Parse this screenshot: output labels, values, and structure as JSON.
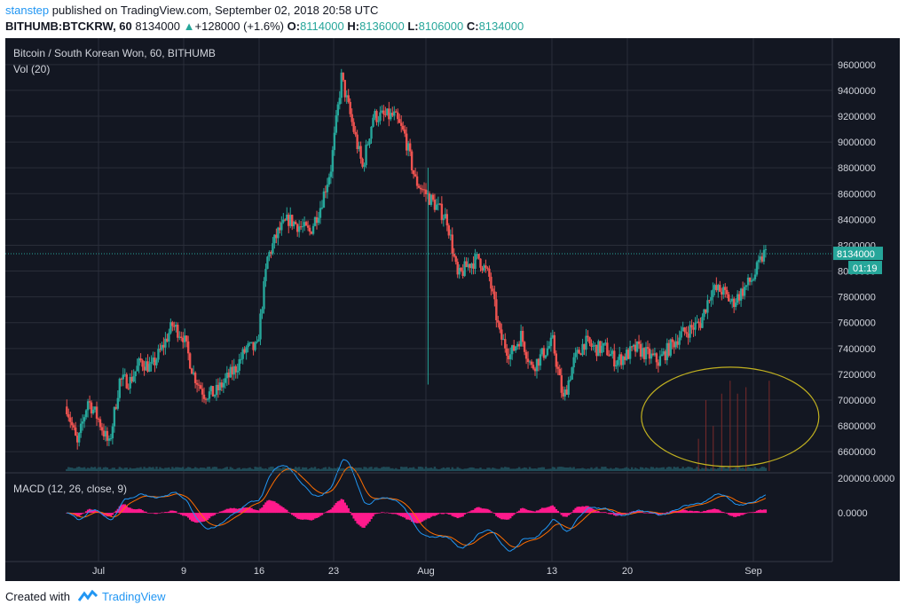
{
  "header": {
    "user": "stanstep",
    "published": "published on TradingView.com, September 02, 2018 20:58 UTC",
    "symbol": "BITHUMB:BTCKRW, 60",
    "last": "8134000",
    "change": "+128000 (+1.6%)",
    "o_label": "O:",
    "o_value": "8114000",
    "h_label": "H:",
    "h_value": "8136000",
    "l_label": "L:",
    "l_value": "8106000",
    "c_label": "C:",
    "c_value": "8134000"
  },
  "footer": {
    "created_with": "Created with",
    "brand": "TradingView"
  },
  "colors": {
    "background": "#131722",
    "grid": "#2a2e39",
    "up": "#26a69a",
    "down": "#ef5350",
    "macd_line": "#2196f3",
    "signal_line": "#ff6d00",
    "histogram": "#ff1a8c",
    "annotation": "#c0b020",
    "price_label": "#26a69a"
  },
  "chart_data": [
    {
      "type": "candlestick",
      "title": "Bitcoin / South Korean Won, 60, BITHUMB",
      "volume_label": "Vol (20)",
      "x_ticks": [
        "Jul",
        "9",
        "16",
        "23",
        "Aug",
        "13",
        "20",
        "Sep"
      ],
      "y_ticks": [
        6600000,
        6800000,
        7000000,
        7200000,
        7400000,
        7600000,
        7800000,
        8000000,
        8200000,
        8400000,
        8600000,
        8800000,
        9000000,
        9200000,
        9400000,
        9600000
      ],
      "ylim": [
        6450000,
        9750000
      ],
      "last_price": "8134000",
      "countdown": "01:19",
      "close_path": [
        {
          "x": "Jun 28",
          "y": 6950000
        },
        {
          "x": "Jun 29",
          "y": 6650000
        },
        {
          "x": "Jun 30",
          "y": 7000000
        },
        {
          "x": "Jul 1",
          "y": 6850000
        },
        {
          "x": "Jul 2",
          "y": 6650000
        },
        {
          "x": "Jul 3",
          "y": 7150000
        },
        {
          "x": "Jul 4",
          "y": 7150000
        },
        {
          "x": "Jul 5",
          "y": 7300000
        },
        {
          "x": "Jul 6",
          "y": 7250000
        },
        {
          "x": "Jul 7",
          "y": 7400000
        },
        {
          "x": "Jul 8",
          "y": 7580000
        },
        {
          "x": "Jul 9",
          "y": 7500000
        },
        {
          "x": "Jul 10",
          "y": 7200000
        },
        {
          "x": "Jul 11",
          "y": 7050000
        },
        {
          "x": "Jul 12",
          "y": 7050000
        },
        {
          "x": "Jul 13",
          "y": 7150000
        },
        {
          "x": "Jul 14",
          "y": 7250000
        },
        {
          "x": "Jul 15",
          "y": 7400000
        },
        {
          "x": "Jul 16",
          "y": 7400000
        },
        {
          "x": "Jul 17",
          "y": 8100000
        },
        {
          "x": "Jul 18",
          "y": 8300000
        },
        {
          "x": "Jul 19",
          "y": 8400000
        },
        {
          "x": "Jul 20",
          "y": 8350000
        },
        {
          "x": "Jul 21",
          "y": 8300000
        },
        {
          "x": "Jul 22",
          "y": 8500000
        },
        {
          "x": "Jul 23",
          "y": 8800000
        },
        {
          "x": "Jul 24",
          "y": 9500000
        },
        {
          "x": "Jul 25",
          "y": 9150000
        },
        {
          "x": "Jul 26",
          "y": 8800000
        },
        {
          "x": "Jul 27",
          "y": 9200000
        },
        {
          "x": "Jul 28",
          "y": 9200000
        },
        {
          "x": "Jul 29",
          "y": 9200000
        },
        {
          "x": "Jul 30",
          "y": 9050000
        },
        {
          "x": "Jul 31",
          "y": 8700000
        },
        {
          "x": "Aug 1",
          "y": 8600000
        },
        {
          "x": "Aug 2",
          "y": 8500000
        },
        {
          "x": "Aug 3",
          "y": 8400000
        },
        {
          "x": "Aug 4",
          "y": 7950000
        },
        {
          "x": "Aug 5",
          "y": 8050000
        },
        {
          "x": "Aug 6",
          "y": 8100000
        },
        {
          "x": "Aug 7",
          "y": 7950000
        },
        {
          "x": "Aug 8",
          "y": 7500000
        },
        {
          "x": "Aug 9",
          "y": 7350000
        },
        {
          "x": "Aug 10",
          "y": 7500000
        },
        {
          "x": "Aug 11",
          "y": 7250000
        },
        {
          "x": "Aug 12",
          "y": 7350000
        },
        {
          "x": "Aug 13",
          "y": 7450000
        },
        {
          "x": "Aug 14",
          "y": 7000000
        },
        {
          "x": "Aug 15",
          "y": 7300000
        },
        {
          "x": "Aug 16",
          "y": 7450000
        },
        {
          "x": "Aug 17",
          "y": 7400000
        },
        {
          "x": "Aug 18",
          "y": 7400000
        },
        {
          "x": "Aug 19",
          "y": 7300000
        },
        {
          "x": "Aug 20",
          "y": 7350000
        },
        {
          "x": "Aug 21",
          "y": 7400000
        },
        {
          "x": "Aug 22",
          "y": 7350000
        },
        {
          "x": "Aug 23",
          "y": 7300000
        },
        {
          "x": "Aug 24",
          "y": 7400000
        },
        {
          "x": "Aug 25",
          "y": 7500000
        },
        {
          "x": "Aug 26",
          "y": 7550000
        },
        {
          "x": "Aug 27",
          "y": 7600000
        },
        {
          "x": "Aug 28",
          "y": 7850000
        },
        {
          "x": "Aug 29",
          "y": 7850000
        },
        {
          "x": "Aug 30",
          "y": 7750000
        },
        {
          "x": "Aug 31",
          "y": 7850000
        },
        {
          "x": "Sep 1",
          "y": 7950000
        },
        {
          "x": "Sep 2",
          "y": 8134000
        }
      ],
      "annotation": "ellipse"
    },
    {
      "type": "histogram",
      "title": "MACD (12, 26, close, 9)",
      "y_ticks": [
        "200000.0000",
        "0.0000"
      ],
      "ylim": [
        -280000,
        220000
      ],
      "series": [
        {
          "values": []
        },
        {
          "values": []
        }
      ]
    }
  ]
}
